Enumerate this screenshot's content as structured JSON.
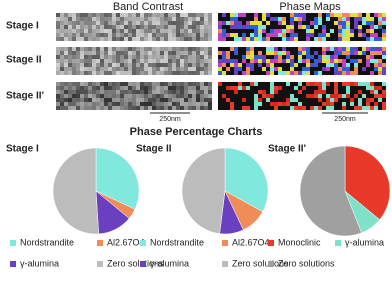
{
  "maps": {
    "columns": [
      "Band Contrast",
      "Phase Maps"
    ],
    "rows": [
      "Stage I",
      "Stage II",
      "Stage II'"
    ],
    "scale_bars": [
      "250nm",
      "250nm"
    ]
  },
  "section_title": "Phase Percentage Charts",
  "chart_data": [
    {
      "type": "pie",
      "title": "Stage I",
      "categories": [
        "Nordstrandite",
        "Al2.67O4",
        "γ-alumina",
        "Zero solutions"
      ],
      "values": [
        32,
        4,
        13,
        51
      ],
      "colors": [
        "#80e8dc",
        "#f08c58",
        "#6a40c0",
        "#bcbcbc"
      ]
    },
    {
      "type": "pie",
      "title": "Stage II",
      "categories": [
        "Nordstrandite",
        "Al2.67O4",
        "γ-alumina",
        "Zero solutions"
      ],
      "values": [
        33,
        10,
        9,
        48
      ],
      "colors": [
        "#80e8dc",
        "#f08c58",
        "#6a40c0",
        "#bcbcbc"
      ]
    },
    {
      "type": "pie",
      "title": "Stage II'",
      "categories": [
        "Monoclinic",
        "γ-alumina",
        "Zero solutions"
      ],
      "values": [
        36,
        8,
        56
      ],
      "colors": [
        "#e8392a",
        "#7ee2c8",
        "#a0a0a0"
      ]
    }
  ]
}
